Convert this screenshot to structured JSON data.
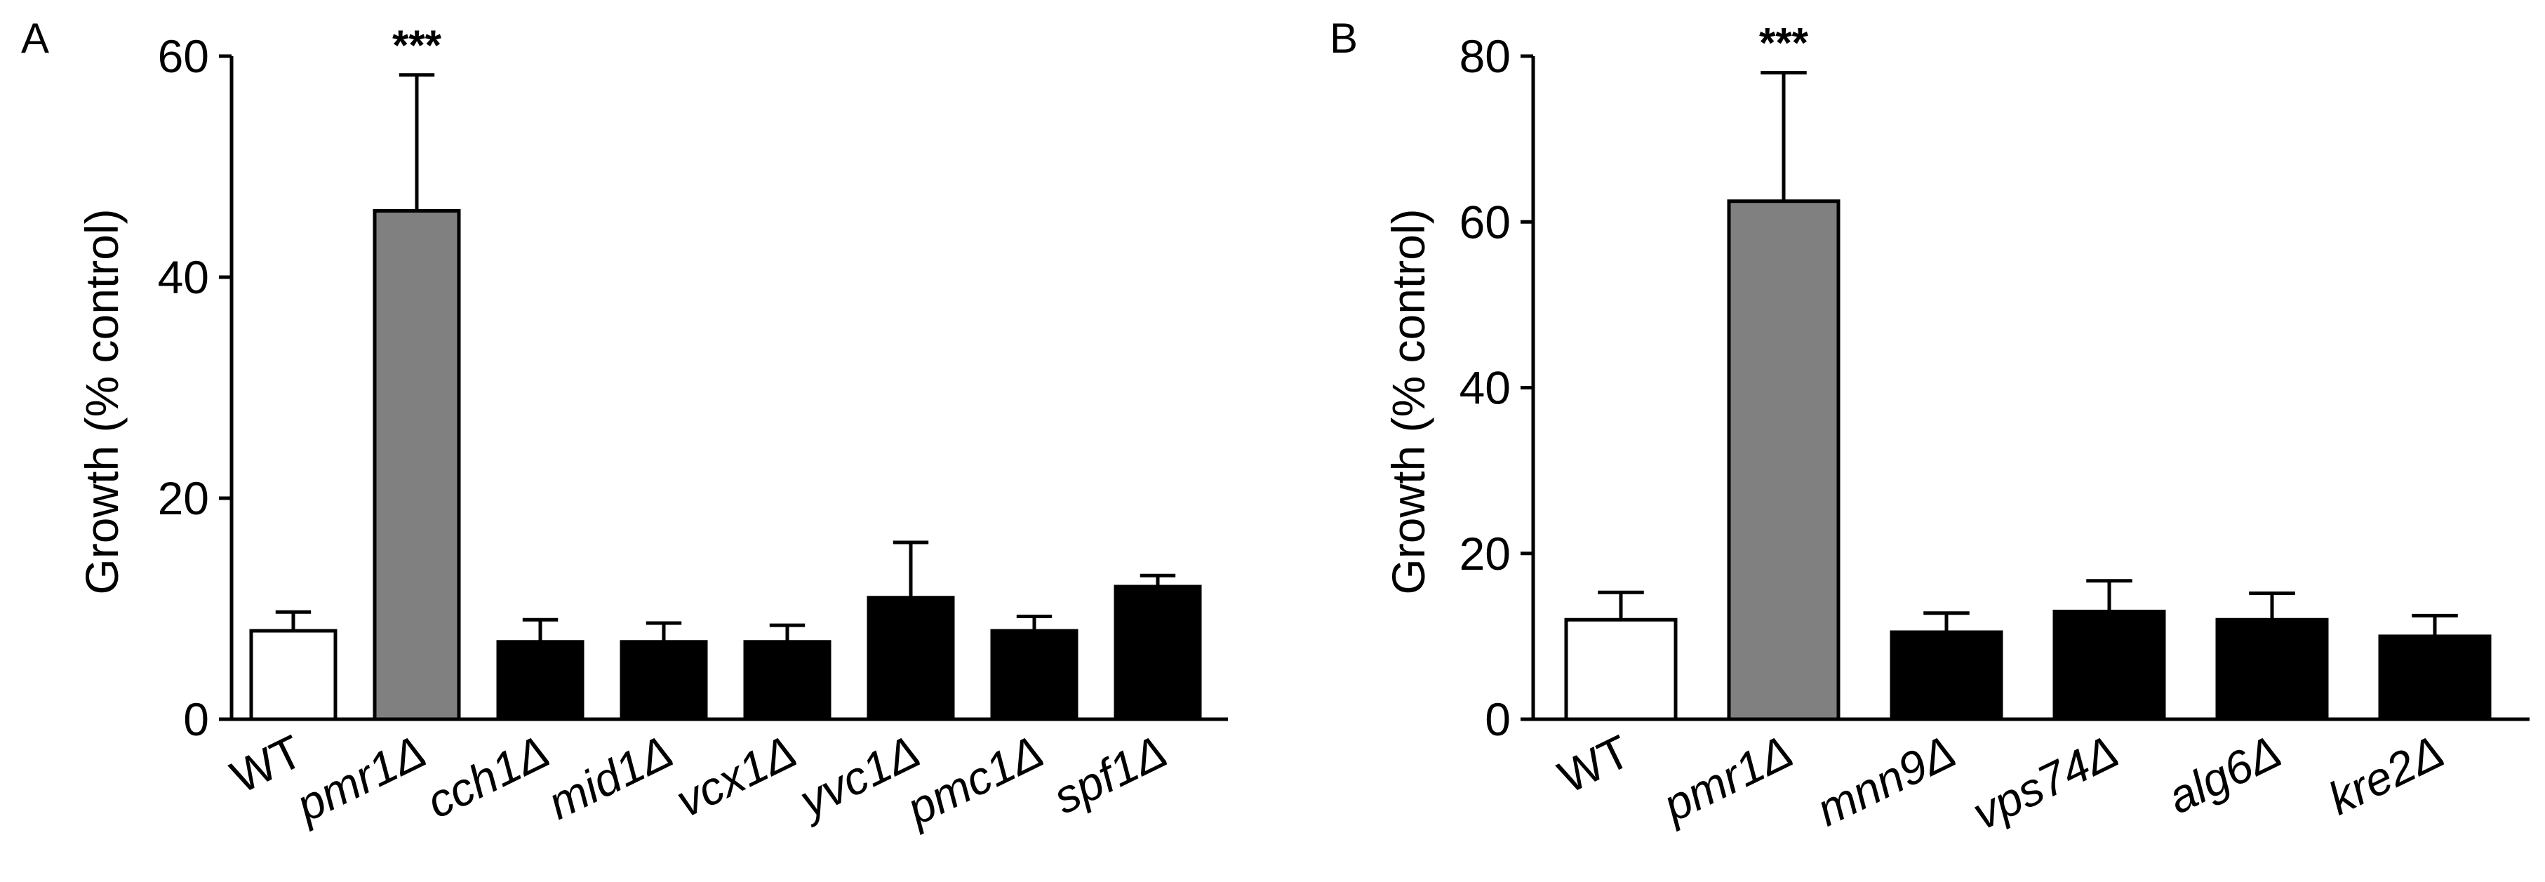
{
  "chart_data": [
    {
      "type": "bar",
      "panel": "A",
      "ylabel": "Growth (% control)",
      "ylim": [
        0,
        60
      ],
      "yticks": [
        0,
        20,
        40,
        60
      ],
      "categories": [
        "WT",
        "pmr1Δ",
        "cch1Δ",
        "mid1Δ",
        "vcx1Δ",
        "yvc1Δ",
        "pmc1Δ",
        "spf1Δ"
      ],
      "values": [
        8,
        46,
        7,
        7,
        7,
        11,
        8,
        12
      ],
      "errors": [
        1.7,
        12.3,
        2,
        1.7,
        1.5,
        5,
        1.3,
        1
      ],
      "significance": [
        "",
        "***",
        "",
        "",
        "",
        "",
        "",
        ""
      ],
      "fills": [
        "#ffffff",
        "#808080",
        "#000000",
        "#000000",
        "#000000",
        "#000000",
        "#000000",
        "#000000"
      ],
      "italic": [
        false,
        true,
        true,
        true,
        true,
        true,
        true,
        true
      ],
      "grid": false
    },
    {
      "type": "bar",
      "panel": "B",
      "ylabel": "Growth (% control)",
      "ylim": [
        0,
        80
      ],
      "yticks": [
        0,
        20,
        40,
        60,
        80
      ],
      "categories": [
        "WT",
        "pmr1Δ",
        "mnn9Δ",
        "vps74Δ",
        "alg6Δ",
        "kre2Δ"
      ],
      "values": [
        12,
        62.5,
        10.5,
        13,
        12,
        10
      ],
      "errors": [
        3.3,
        15.5,
        2.3,
        3.7,
        3.2,
        2.5
      ],
      "significance": [
        "",
        "***",
        "",
        "",
        "",
        ""
      ],
      "fills": [
        "#ffffff",
        "#808080",
        "#000000",
        "#000000",
        "#000000",
        "#000000"
      ],
      "italic": [
        false,
        true,
        true,
        true,
        true,
        true
      ],
      "grid": false
    }
  ]
}
